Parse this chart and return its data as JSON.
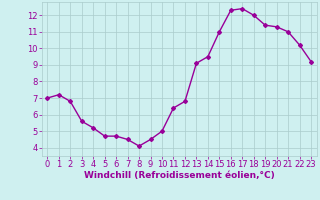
{
  "x": [
    0,
    1,
    2,
    3,
    4,
    5,
    6,
    7,
    8,
    9,
    10,
    11,
    12,
    13,
    14,
    15,
    16,
    17,
    18,
    19,
    20,
    21,
    22,
    23
  ],
  "y": [
    7.0,
    7.2,
    6.8,
    5.6,
    5.2,
    4.7,
    4.7,
    4.5,
    4.1,
    4.5,
    5.0,
    6.4,
    6.8,
    9.1,
    9.5,
    11.0,
    12.3,
    12.4,
    12.0,
    11.4,
    11.3,
    11.0,
    10.2,
    9.2
  ],
  "line_color": "#990099",
  "marker": "D",
  "marker_size": 2.0,
  "bg_color": "#cff0f0",
  "grid_color": "#aacccc",
  "xlabel": "Windchill (Refroidissement éolien,°C)",
  "xlabel_color": "#990099",
  "tick_color": "#990099",
  "ylim": [
    3.5,
    12.8
  ],
  "yticks": [
    4,
    5,
    6,
    7,
    8,
    9,
    10,
    11,
    12
  ],
  "xlim": [
    -0.5,
    23.5
  ],
  "xticks": [
    0,
    1,
    2,
    3,
    4,
    5,
    6,
    7,
    8,
    9,
    10,
    11,
    12,
    13,
    14,
    15,
    16,
    17,
    18,
    19,
    20,
    21,
    22,
    23
  ],
  "linewidth": 1.0,
  "tick_fontsize": 6.0,
  "xlabel_fontsize": 6.5
}
